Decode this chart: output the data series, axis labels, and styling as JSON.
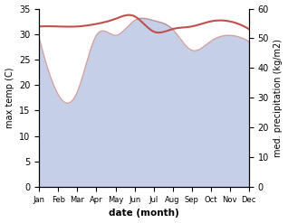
{
  "months": [
    "Jan",
    "Feb",
    "Mar",
    "Apr",
    "May",
    "Jun",
    "Jul",
    "Aug",
    "Sep",
    "Oct",
    "Nov",
    "Dec"
  ],
  "max_temp": [
    31.5,
    31.5,
    31.5,
    32.0,
    33.0,
    33.5,
    30.5,
    31.0,
    31.5,
    32.5,
    32.5,
    31.0
  ],
  "precipitation": [
    29.5,
    18.5,
    19.0,
    30.0,
    30.0,
    33.0,
    33.0,
    31.5,
    27.0,
    29.0,
    30.0,
    29.0
  ],
  "temp_color": "#c0504d",
  "precip_fill_color": "#c5d0e8",
  "temp_ylim": [
    0,
    35
  ],
  "precip_ylim": [
    0,
    60
  ],
  "xlabel": "date (month)",
  "ylabel_left": "max temp (C)",
  "ylabel_right": "med. precipitation (kg/m2)",
  "bg_color": "#ffffff"
}
